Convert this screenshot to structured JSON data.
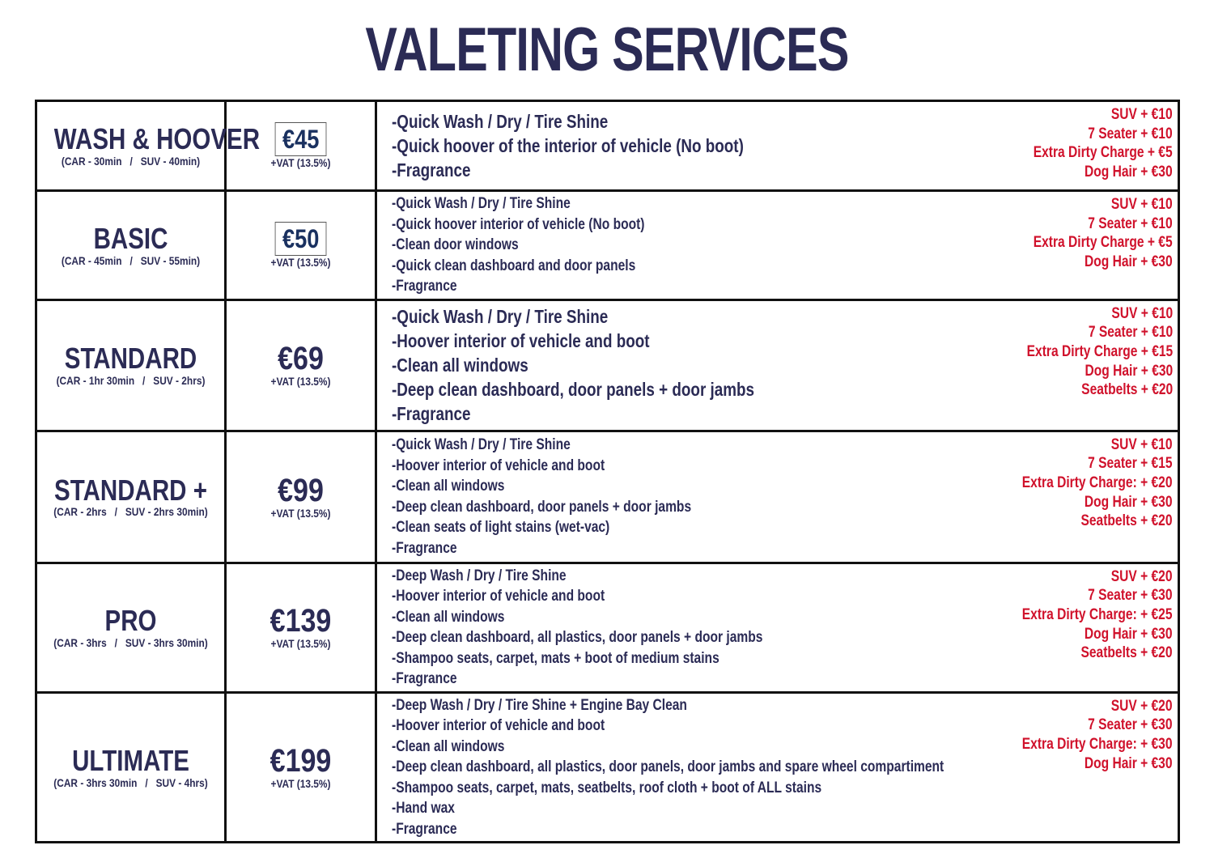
{
  "header": {
    "title": "VALETING SERVICES"
  },
  "table": {
    "rows": [
      {
        "name": "WASH & HOOVER",
        "times": "(CAR - 30min   /   SUV - 40min)",
        "price": "€45",
        "vat": "+VAT (13.5%)",
        "features": [
          "-Quick Wash / Dry / Tire Shine",
          "-Quick hoover of the interior of vehicle (No boot)",
          "-Fragrance"
        ],
        "extras": [
          "SUV + €10",
          "7 Seater + €10",
          "Extra Dirty Charge + €5",
          "Dog Hair + €30"
        ]
      },
      {
        "name": "BASIC",
        "times": "(CAR - 45min   /   SUV - 55min)",
        "price": "€50",
        "vat": "+VAT (13.5%)",
        "features": [
          "-Quick Wash / Dry / Tire Shine",
          "-Quick hoover interior of vehicle (No boot)",
          "-Clean door windows",
          "-Quick clean dashboard and door panels",
          "-Fragrance"
        ],
        "extras": [
          "SUV + €10",
          "7 Seater + €10",
          "Extra Dirty Charge + €5",
          "Dog Hair + €30"
        ]
      },
      {
        "name": "STANDARD",
        "times": "(CAR - 1hr 30min   /   SUV - 2hrs)",
        "price": "€69",
        "vat": "+VAT (13.5%)",
        "features": [
          "-Quick Wash / Dry / Tire Shine",
          "-Hoover interior of vehicle and boot",
          "-Clean all windows",
          "-Deep clean dashboard, door panels + door jambs",
          "-Fragrance"
        ],
        "extras": [
          "SUV + €10",
          "7 Seater + €10",
          "Extra Dirty Charge + €15",
          "Dog Hair + €30",
          "Seatbelts + €20"
        ]
      },
      {
        "name": "STANDARD +",
        "times": "(CAR - 2hrs   /   SUV - 2hrs 30min)",
        "price": "€99",
        "vat": "+VAT (13.5%)",
        "features": [
          "-Quick Wash / Dry / Tire Shine",
          "-Hoover interior of vehicle and boot",
          "-Clean all windows",
          "-Deep clean dashboard, door panels + door jambs",
          "-Clean seats of light stains (wet-vac)",
          "-Fragrance"
        ],
        "extras": [
          "SUV + €10",
          "7 Seater + €15",
          "Extra Dirty Charge: + €20",
          "Dog Hair + €30",
          "Seatbelts + €20"
        ]
      },
      {
        "name": "PRO",
        "times": "(CAR - 3hrs   /   SUV - 3hrs 30min)",
        "price": "€139",
        "vat": "+VAT (13.5%)",
        "features": [
          "-Deep Wash / Dry / Tire Shine",
          "-Hoover interior of vehicle and boot",
          "-Clean all windows",
          "-Deep clean dashboard, all plastics, door panels + door jambs",
          "-Shampoo seats, carpet, mats + boot of medium stains",
          "-Fragrance"
        ],
        "extras": [
          "SUV + €20",
          "7 Seater + €30",
          "Extra Dirty Charge: + €25",
          "Dog Hair + €30",
          "Seatbelts + €20"
        ]
      },
      {
        "name": "ULTIMATE",
        "times": "(CAR - 3hrs 30min   /   SUV - 4hrs)",
        "price": "€199",
        "vat": "+VAT (13.5%)",
        "features": [
          "-Deep Wash / Dry / Tire Shine + Engine Bay Clean",
          "-Hoover interior of vehicle and boot",
          "-Clean all windows",
          "-Deep clean dashboard, all plastics, door panels, door jambs and spare wheel compartiment",
          "-Shampoo seats, carpet, mats, seatbelts, roof cloth + boot of ALL stains",
          "-Hand wax",
          "-Fragrance"
        ],
        "extras": [
          "SUV + €20",
          "7 Seater + €30",
          "Extra Dirty Charge: + €30",
          "Dog Hair + €30"
        ]
      }
    ]
  }
}
